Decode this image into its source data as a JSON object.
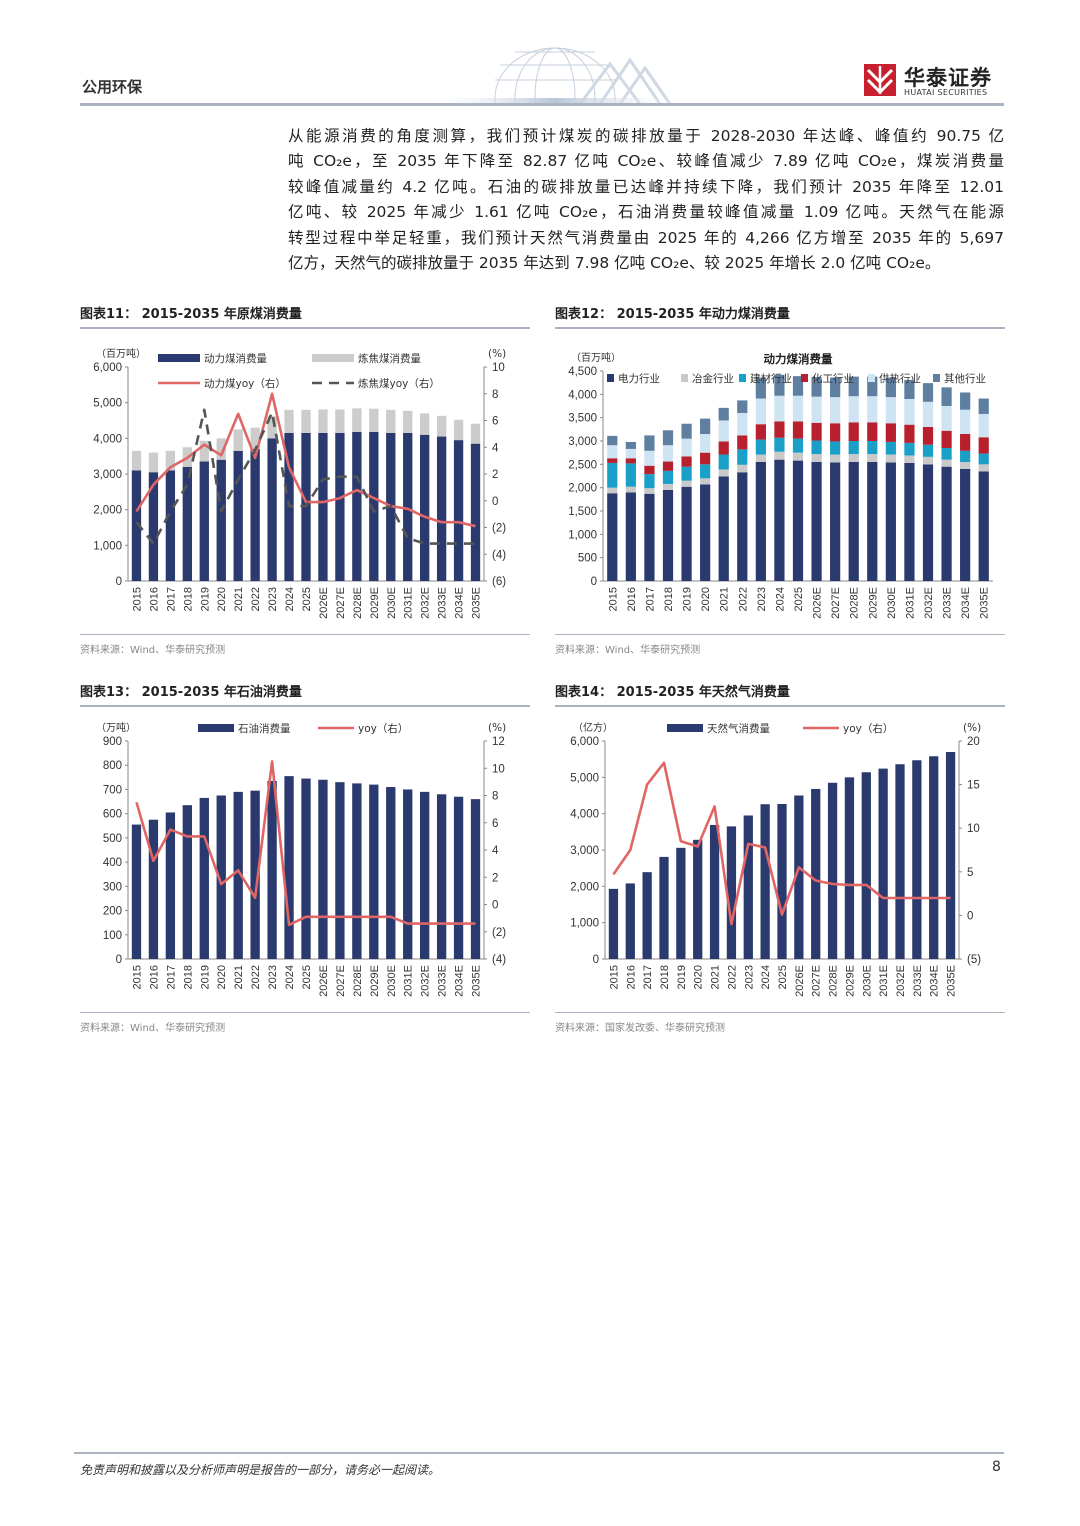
{
  "header": {
    "section": "公用环保",
    "logo_cn": "华泰证券",
    "logo_en": "HUATAI SECURITIES"
  },
  "paragraph": [
    "从能源消费的角度测算，我们预计煤炭的碳排放量于 2028-2030 年达峰、峰值约 90.75 亿",
    "吨 CO₂e，至 2035 年下降至 82.87 亿吨 CO₂e、较峰值减少 7.89 亿吨 CO₂e，煤炭消费量",
    "较峰值减量约 4.2 亿吨。石油的碳排放量已达峰并持续下降，我们预计 2035 年降至 12.01",
    "亿吨、较 2025 年减少 1.61 亿吨 CO₂e，石油消费量较峰值减量 1.09 亿吨。天然气在能源",
    "转型过程中举足轻重，我们预计天然气消费量由 2025 年的 4,266 亿方增至 2035 年的 5,697",
    "亿方，天然气的碳排放量于 2035 年达到 7.98 亿吨 CO₂e、较 2025 年增长 2.0 亿吨 CO₂e。"
  ],
  "figures": {
    "fig11": {
      "title": "图表11：  2015-2035 年原煤消费量",
      "source": "资料来源：Wind、华泰研究预测"
    },
    "fig12": {
      "title": "图表12：  2015-2035 年动力煤消费量",
      "source": "资料来源：Wind、华泰研究预测"
    },
    "fig13": {
      "title": "图表13：  2015-2035 年石油消费量",
      "source": "资料来源：Wind、华泰研究预测"
    },
    "fig14": {
      "title": "图表14：  2015-2035 年天然气消费量",
      "source": "资料来源：国家发改委、华泰研究预测"
    }
  },
  "footer": {
    "disclaimer": "免责声明和披露以及分析师声明是报告的一部分，请务必一起阅读。",
    "page": "8"
  },
  "colors": {
    "navy": "#2b3a6e",
    "light_gray": "#cccccc",
    "red": "#e06666",
    "dashed": "#555555"
  },
  "chart_data": [
    {
      "id": "fig11",
      "type": "bar",
      "categories": [
        "2015",
        "2016",
        "2017",
        "2018",
        "2019",
        "2020",
        "2021",
        "2022",
        "2023",
        "2024",
        "2025",
        "2026E",
        "2027E",
        "2028E",
        "2029E",
        "2030E",
        "2031E",
        "2032E",
        "2033E",
        "2034E",
        "2035E"
      ],
      "left_unit": "（百万吨）",
      "right_unit": "(%)",
      "ylim": [
        0,
        6000
      ],
      "yticks": [
        "0",
        "1,000",
        "2,000",
        "3,000",
        "4,000",
        "5,000",
        "6,000"
      ],
      "y2lim": [
        -6,
        10
      ],
      "y2ticks": [
        "(6)",
        "(4)",
        "(2)",
        "0",
        "2",
        "4",
        "6",
        "8",
        "10"
      ],
      "stacked": true,
      "series": [
        {
          "name": "动力煤消费量",
          "values": [
            3100,
            3050,
            3100,
            3200,
            3350,
            3400,
            3650,
            3700,
            4000,
            4150,
            4150,
            4150,
            4150,
            4180,
            4180,
            4150,
            4150,
            4100,
            4050,
            3950,
            3850
          ]
        },
        {
          "name": "炼焦煤消费量",
          "values": [
            550,
            550,
            550,
            550,
            580,
            600,
            600,
            600,
            620,
            650,
            650,
            660,
            660,
            660,
            650,
            650,
            620,
            600,
            580,
            570,
            560
          ]
        }
      ],
      "lines": [
        {
          "name": "动力煤yoy（右）",
          "values": [
            -0.8,
            1.2,
            2.5,
            3.2,
            4.2,
            3.4,
            6.5,
            3.2,
            8.0,
            2.5,
            -0.1,
            -0.1,
            0.2,
            0.8,
            0.2,
            -0.4,
            -0.6,
            -1.2,
            -1.6,
            -1.6,
            -1.9
          ]
        },
        {
          "name": "炼焦煤yoy（右）",
          "values": [
            -1.6,
            -3.2,
            -0.8,
            1.2,
            6.8,
            -0.8,
            1.6,
            3.8,
            6.6,
            -0.4,
            -0.4,
            1.6,
            1.8,
            1.8,
            -0.8,
            -0.4,
            -2.8,
            -3.2,
            -3.2,
            -3.2,
            -3.2
          ]
        }
      ]
    },
    {
      "id": "fig12",
      "type": "bar",
      "chart_title": "动力煤消费量",
      "categories": [
        "2015",
        "2016",
        "2017",
        "2018",
        "2019",
        "2020",
        "2021",
        "2022",
        "2023",
        "2024",
        "2025",
        "2026E",
        "2027E",
        "2028E",
        "2029E",
        "2030E",
        "2031E",
        "2032E",
        "2033E",
        "2034E",
        "2035E"
      ],
      "left_unit": "（百万吨）",
      "ylim": [
        0,
        4500
      ],
      "yticks": [
        "0",
        "500",
        "1,000",
        "1,500",
        "2,000",
        "2,500",
        "3,000",
        "3,500",
        "4,000",
        "4,500"
      ],
      "stacked": true,
      "series": [
        {
          "name": "电力行业",
          "values": [
            1880,
            1900,
            1870,
            1950,
            2020,
            2070,
            2240,
            2330,
            2550,
            2600,
            2580,
            2550,
            2540,
            2550,
            2550,
            2540,
            2530,
            2500,
            2450,
            2400,
            2350
          ]
        },
        {
          "name": "冶金行业",
          "values": [
            120,
            120,
            120,
            130,
            130,
            130,
            150,
            160,
            160,
            170,
            170,
            170,
            170,
            170,
            170,
            170,
            160,
            160,
            150,
            150,
            150
          ]
        },
        {
          "name": "建材行业",
          "values": [
            530,
            500,
            300,
            280,
            300,
            300,
            320,
            330,
            320,
            300,
            300,
            290,
            280,
            280,
            280,
            270,
            270,
            260,
            250,
            240,
            230
          ]
        },
        {
          "name": "化工行业",
          "values": [
            100,
            110,
            180,
            200,
            220,
            250,
            280,
            300,
            330,
            350,
            370,
            380,
            390,
            400,
            400,
            400,
            390,
            380,
            370,
            360,
            350
          ]
        },
        {
          "name": "供热行业",
          "values": [
            280,
            200,
            320,
            350,
            380,
            400,
            450,
            480,
            550,
            550,
            550,
            560,
            560,
            560,
            560,
            560,
            550,
            540,
            530,
            520,
            500
          ]
        },
        {
          "name": "其他行业",
          "values": [
            200,
            150,
            330,
            320,
            320,
            330,
            270,
            270,
            450,
            450,
            420,
            420,
            420,
            420,
            420,
            420,
            410,
            400,
            400,
            370,
            330
          ]
        }
      ]
    },
    {
      "id": "fig13",
      "type": "bar",
      "categories": [
        "2015",
        "2016",
        "2017",
        "2018",
        "2019",
        "2020",
        "2021",
        "2022",
        "2023",
        "2024",
        "2025",
        "2026E",
        "2027E",
        "2028E",
        "2029E",
        "2030E",
        "2031E",
        "2032E",
        "2033E",
        "2034E",
        "2035E"
      ],
      "left_unit": "（万吨）",
      "right_unit": "(%)",
      "ylim": [
        0,
        900
      ],
      "yticks": [
        "0",
        "100",
        "200",
        "300",
        "400",
        "500",
        "600",
        "700",
        "800",
        "900"
      ],
      "y2lim": [
        -4,
        12
      ],
      "y2ticks": [
        "(4)",
        "(2)",
        "0",
        "2",
        "4",
        "6",
        "8",
        "10",
        "12"
      ],
      "series": [
        {
          "name": "石油消费量",
          "values": [
            555,
            575,
            605,
            635,
            665,
            675,
            690,
            695,
            735,
            755,
            745,
            740,
            730,
            725,
            720,
            710,
            700,
            690,
            680,
            670,
            660
          ]
        }
      ],
      "lines": [
        {
          "name": "yoy（右）",
          "values": [
            7.5,
            3.2,
            5.5,
            5.0,
            5.0,
            1.5,
            2.5,
            0.5,
            10.5,
            -1.5,
            -0.9,
            -0.9,
            -0.9,
            -0.9,
            -0.9,
            -0.9,
            -1.4,
            -1.4,
            -1.4,
            -1.4,
            -1.4
          ]
        }
      ]
    },
    {
      "id": "fig14",
      "type": "bar",
      "categories": [
        "2015",
        "2016",
        "2017",
        "2018",
        "2019",
        "2020",
        "2021",
        "2022",
        "2023",
        "2024",
        "2025",
        "2026E",
        "2027E",
        "2028E",
        "2029E",
        "2030E",
        "2031E",
        "2032E",
        "2033E",
        "2034E",
        "2035E"
      ],
      "left_unit": "（亿方）",
      "right_unit": "(%)",
      "ylim": [
        0,
        6000
      ],
      "yticks": [
        "0",
        "1,000",
        "2,000",
        "3,000",
        "4,000",
        "5,000",
        "6,000"
      ],
      "y2lim": [
        -5,
        20
      ],
      "y2ticks": [
        "(5)",
        "0",
        "5",
        "10",
        "15",
        "20"
      ],
      "series": [
        {
          "name": "天然气消费量",
          "values": [
            1930,
            2080,
            2390,
            2810,
            3060,
            3280,
            3690,
            3650,
            3950,
            4260,
            4266,
            4500,
            4680,
            4850,
            5000,
            5140,
            5240,
            5360,
            5470,
            5580,
            5697
          ]
        }
      ],
      "lines": [
        {
          "name": "yoy（右）",
          "values": [
            4.7,
            7.5,
            15.0,
            17.5,
            8.5,
            7.9,
            12.5,
            -1.0,
            8.2,
            7.8,
            0.1,
            5.5,
            4.0,
            3.6,
            3.5,
            3.5,
            2.0,
            2.0,
            2.0,
            2.0,
            2.0
          ]
        }
      ]
    }
  ]
}
